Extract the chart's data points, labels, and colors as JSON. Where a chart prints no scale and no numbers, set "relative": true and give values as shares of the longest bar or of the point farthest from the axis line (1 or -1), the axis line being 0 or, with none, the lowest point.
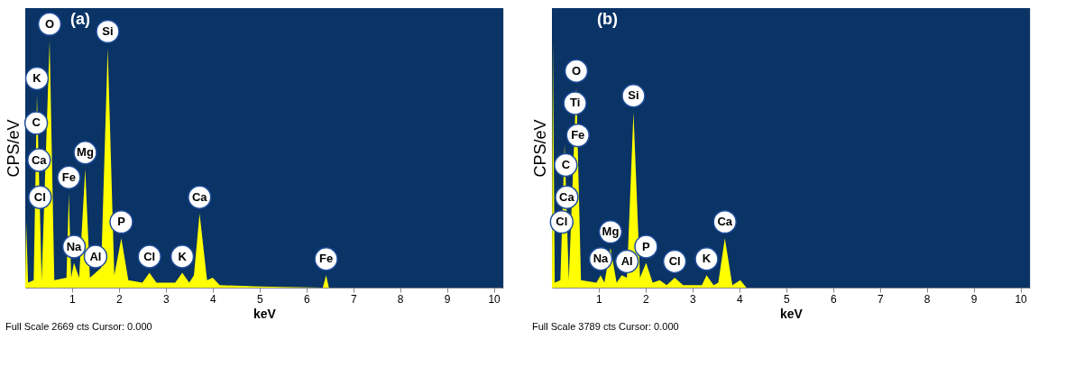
{
  "chart_data": [
    {
      "type": "area",
      "title": "(a)",
      "xlabel": "keV",
      "ylabel": "CPS/eV",
      "relative": true,
      "xlim": [
        0,
        10.2
      ],
      "xticks": [
        1,
        2,
        3,
        4,
        5,
        6,
        7,
        8,
        9,
        10
      ],
      "series": [
        {
          "color": "#ffff00",
          "x": [
            0,
            0.02,
            0.06,
            0.18,
            0.25,
            0.35,
            0.52,
            0.62,
            0.88,
            0.93,
            0.98,
            1.04,
            1.15,
            1.28,
            1.38,
            1.5,
            1.62,
            1.76,
            1.9,
            2.05,
            2.2,
            2.5,
            2.65,
            2.8,
            3.2,
            3.35,
            3.5,
            3.6,
            3.72,
            3.88,
            4.0,
            4.15,
            5.0,
            6.35,
            6.42,
            6.48,
            10.2
          ],
          "values": [
            0,
            0.27,
            0.02,
            0.03,
            0.78,
            0.03,
            1.0,
            0.03,
            0.04,
            0.38,
            0.04,
            0.1,
            0.04,
            0.48,
            0.04,
            0.06,
            0.08,
            0.97,
            0.05,
            0.2,
            0.03,
            0.02,
            0.06,
            0.02,
            0.02,
            0.06,
            0.02,
            0.05,
            0.3,
            0.03,
            0.04,
            0.01,
            0.005,
            0,
            0.05,
            0,
            0
          ]
        }
      ],
      "annotations": [
        {
          "text": "O",
          "x": 0.52,
          "y": 1.0
        },
        {
          "text": "Si",
          "x": 1.76,
          "y": 0.97
        },
        {
          "text": "K",
          "x": 0.25,
          "y": 0.78
        },
        {
          "text": "C",
          "x": 0.233,
          "y": 0.6
        },
        {
          "text": "Mg",
          "x": 1.28,
          "y": 0.48
        },
        {
          "text": "Ca",
          "x": 0.294,
          "y": 0.45
        },
        {
          "text": "Fe",
          "x": 0.93,
          "y": 0.38
        },
        {
          "text": "Cl",
          "x": 0.314,
          "y": 0.3
        },
        {
          "text": "P",
          "x": 2.05,
          "y": 0.2
        },
        {
          "text": "Ca",
          "x": 3.72,
          "y": 0.3
        },
        {
          "text": "Na",
          "x": 1.04,
          "y": 0.1
        },
        {
          "text": "Al",
          "x": 1.5,
          "y": 0.06
        },
        {
          "text": "Cl",
          "x": 2.65,
          "y": 0.06
        },
        {
          "text": "K",
          "x": 3.35,
          "y": 0.06
        },
        {
          "text": "Fe",
          "x": 6.42,
          "y": 0.05
        },
        "Full Scale 2669 cts Cursor: 0.000"
      ]
    },
    {
      "type": "area",
      "title": "(b)",
      "xlabel": "keV",
      "ylabel": "CPS/eV",
      "relative": true,
      "xlim": [
        0,
        10.2
      ],
      "xticks": [
        1,
        2,
        3,
        4,
        5,
        6,
        7,
        8,
        9,
        10
      ],
      "series": [
        {
          "color": "#ffff00",
          "x": [
            0,
            0.02,
            0.06,
            0.18,
            0.27,
            0.36,
            0.52,
            0.62,
            0.95,
            1.04,
            1.12,
            1.25,
            1.38,
            1.49,
            1.6,
            1.74,
            1.88,
            2.01,
            2.15,
            2.3,
            2.45,
            2.62,
            2.8,
            3.2,
            3.3,
            3.45,
            3.55,
            3.69,
            3.85,
            4.02,
            4.15,
            10.2
          ],
          "values": [
            0,
            1.0,
            0.02,
            0.03,
            0.58,
            0.03,
            0.81,
            0.03,
            0.02,
            0.05,
            0.02,
            0.16,
            0.02,
            0.05,
            0.04,
            0.71,
            0.04,
            0.1,
            0.02,
            0.03,
            0.01,
            0.04,
            0.01,
            0.01,
            0.05,
            0.01,
            0.02,
            0.2,
            0.01,
            0.03,
            0,
            0
          ]
        }
      ],
      "annotations": [
        {
          "text": "O",
          "x": 0.52,
          "y": 0.81
        },
        {
          "text": "Ti",
          "x": 0.493,
          "y": 0.68
        },
        {
          "text": "Fe",
          "x": 0.553,
          "y": 0.55
        },
        {
          "text": "Si",
          "x": 1.74,
          "y": 0.71
        },
        {
          "text": "C",
          "x": 0.295,
          "y": 0.43
        },
        {
          "text": "Ca",
          "x": 0.316,
          "y": 0.3
        },
        {
          "text": "Cl",
          "x": 0.208,
          "y": 0.2
        },
        {
          "text": "Mg",
          "x": 1.25,
          "y": 0.16
        },
        {
          "text": "Ca",
          "x": 3.69,
          "y": 0.2
        },
        {
          "text": "Na",
          "x": 1.04,
          "y": 0.05
        },
        {
          "text": "Al",
          "x": 1.6,
          "y": 0.04
        },
        {
          "text": "P",
          "x": 2.01,
          "y": 0.1
        },
        {
          "text": "Cl",
          "x": 2.62,
          "y": 0.04
        },
        {
          "text": "K",
          "x": 3.3,
          "y": 0.05
        },
        "Full Scale 3789 cts Cursor: 0.000"
      ]
    }
  ]
}
